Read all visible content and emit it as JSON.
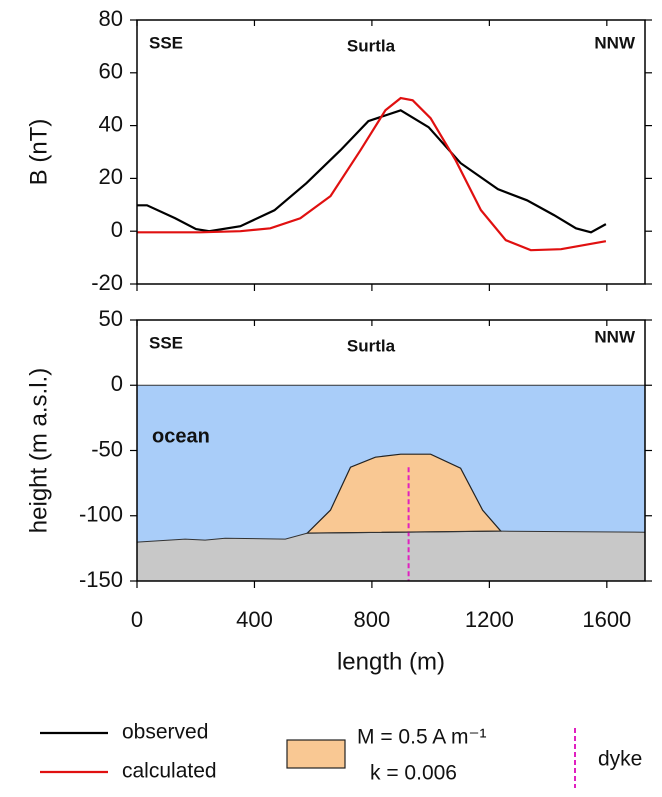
{
  "chart_data": [
    {
      "type": "line",
      "y_label": "B (nT)",
      "annotations": [
        "SSE",
        "Surtla",
        "NNW"
      ],
      "xlim": [
        0,
        1730
      ],
      "xticks": [
        0,
        400,
        800,
        1200,
        1600
      ],
      "xticklabels": false,
      "ylim": [
        -20,
        80
      ],
      "yticks": [
        -20,
        0,
        20,
        40,
        60,
        80
      ],
      "series": [
        {
          "name": "observed",
          "color": "#000000",
          "x": [
            0,
            34,
            130,
            201,
            246,
            352,
            468,
            577,
            693,
            788,
            898,
            993,
            1102,
            1229,
            1328,
            1420,
            1495,
            1546,
            1597
          ],
          "values": [
            9.8,
            9.8,
            4.9,
            0.8,
            0,
            1.9,
            7.9,
            18.2,
            30.7,
            41.7,
            45.8,
            39.4,
            25.8,
            15.9,
            11.7,
            6.1,
            1.1,
            -0.4,
            2.7
          ]
        },
        {
          "name": "calculated",
          "color": "#e01010",
          "x": [
            0,
            215,
            352,
            454,
            556,
            659,
            761,
            846,
            898,
            939,
            1000,
            1085,
            1171,
            1256,
            1341,
            1444,
            1597
          ],
          "values": [
            -0.4,
            -0.4,
            0,
            1.1,
            4.9,
            13.3,
            30.7,
            45.8,
            50.4,
            49.6,
            42.8,
            26.9,
            8,
            -3.4,
            -7.2,
            -6.8,
            -3.8
          ]
        }
      ]
    },
    {
      "type": "area",
      "x_label": "length (m)",
      "y_label": "height (m a.s.l.)",
      "annotations": [
        "SSE",
        "Surtla",
        "NNW"
      ],
      "xlim": [
        0,
        1730
      ],
      "xticks": [
        0,
        400,
        800,
        1200,
        1600
      ],
      "xticklabels": true,
      "ylim": [
        -150,
        50
      ],
      "yticks": [
        -150,
        -100,
        -50,
        0,
        50
      ],
      "series": [
        {
          "name": "ocean",
          "color": "#a9cdf9",
          "x": [
            0,
            1730,
            1730,
            0
          ],
          "values": [
            0,
            0,
            -112.6,
            -120.2
          ]
        },
        {
          "color": "#c8c8c8",
          "x": [
            0,
            164,
            232,
            300,
            505,
            580,
            1239,
            1730,
            1730,
            0
          ],
          "values": [
            -120.2,
            -117.9,
            -118.7,
            -117.2,
            -117.9,
            -113.3,
            -111.8,
            -112.6,
            -150,
            -150
          ]
        },
        {
          "name": "M = 0.5 A m⁻¹",
          "note": "k = 0.006",
          "color": "#f9c893",
          "x": [
            580,
            659,
            727,
            812,
            898,
            1000,
            1102,
            1177,
            1239
          ],
          "values": [
            -113.3,
            -95.7,
            -62.8,
            -55.1,
            -52.8,
            -52.8,
            -63.6,
            -95.7,
            -111.8
          ]
        },
        {
          "name": "dyke",
          "color": "#e020c0",
          "dashed": true,
          "x": [
            925,
            925
          ],
          "values": [
            -62.8,
            -150
          ]
        }
      ]
    }
  ]
}
